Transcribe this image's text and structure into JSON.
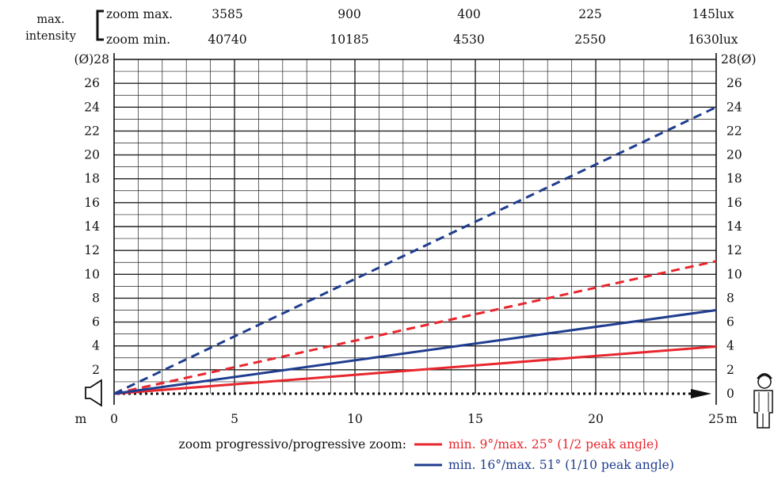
{
  "chart_data": {
    "type": "line",
    "x_unit": "m",
    "y_unit": "(Ø)",
    "xlim": [
      0,
      25
    ],
    "ylim": [
      0,
      28
    ],
    "x_ticks": [
      0,
      5,
      10,
      15,
      20,
      25
    ],
    "y_ticks": [
      0,
      2,
      4,
      6,
      8,
      10,
      12,
      14,
      16,
      18,
      20,
      22,
      24,
      26,
      28
    ],
    "grid": true,
    "series": [
      {
        "name": "min. 9°/max. 25° (1/2 peak angle)",
        "zoom": "min",
        "color": "#e8262d",
        "dash": false,
        "x": [
          0,
          25
        ],
        "y": [
          0,
          3.95
        ]
      },
      {
        "name": "min. 9°/max. 25° (1/2 peak angle)",
        "zoom": "max",
        "color": "#e8262d",
        "dash": true,
        "x": [
          0,
          25
        ],
        "y": [
          0,
          11.1
        ]
      },
      {
        "name": "min. 16°/max. 51° (1/10 peak angle)",
        "zoom": "min",
        "color": "#1f3d8f",
        "dash": false,
        "x": [
          0,
          25
        ],
        "y": [
          0,
          7.0
        ]
      },
      {
        "name": "min. 16°/max. 51° (1/10 peak angle)",
        "zoom": "max",
        "color": "#1f3d8f",
        "dash": true,
        "x": [
          0,
          25
        ],
        "y": [
          0,
          24.0
        ]
      }
    ],
    "intensity_header": {
      "label": "max. intensity",
      "zoom_max_label": "zoom max.",
      "zoom_min_label": "zoom min.",
      "zoom_max_values": [
        "3585",
        "900",
        "400",
        "225",
        "145lux"
      ],
      "zoom_min_values": [
        "40740",
        "10185",
        "4530",
        "2550",
        "1630lux"
      ]
    },
    "legend": {
      "title": "zoom progressivo/progressive zoom:",
      "entries": [
        {
          "label": "min. 9°/max. 25° (1/2 peak angle)",
          "color": "#e8262d"
        },
        {
          "label": "min. 16°/max. 51° (1/10 peak angle)",
          "color": "#1f3d8f"
        }
      ]
    }
  }
}
